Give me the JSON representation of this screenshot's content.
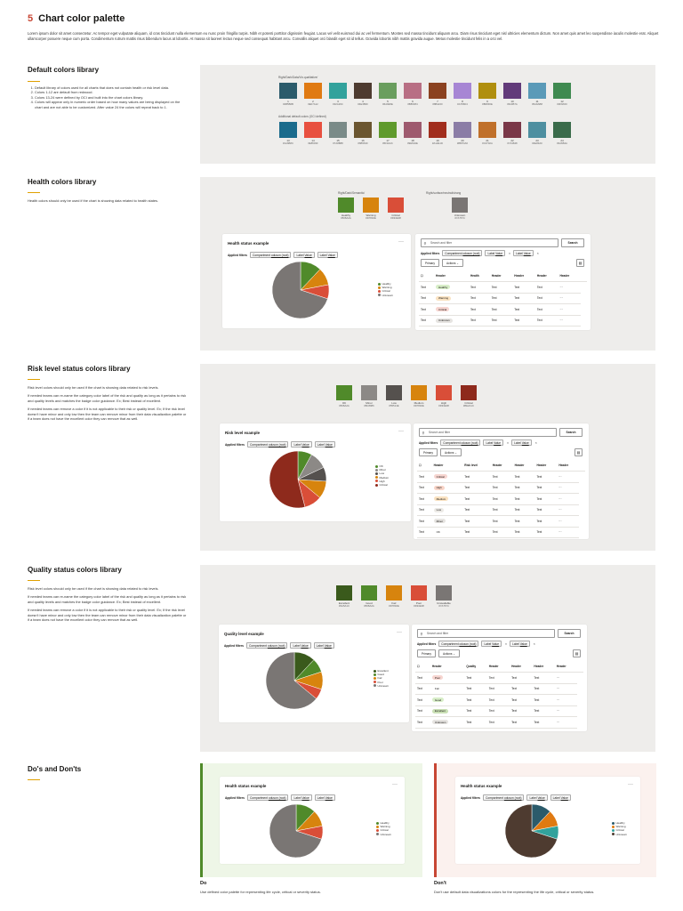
{
  "page": {
    "number": "5",
    "title": "Chart color palette",
    "intro": "Lorem ipsum dolor sit amet consectetur. Ac tempor eget vulputate aliquam, id cras tincidunt nulla elementum eu nunc proin fringilla turpis. Nibh et potenti porttitor dignissim feugiat. Lacus vel velit euismod dui ac vel fermentum. Montes sed massa tincidunt aliquam arcu. Diam risus tincidunt eget nisl ultricies elementum dictum. Non amet quis amet leo suspendisse iaculis molestie erat. Aliquet ullamcorper posuere neque cum porta. Condimentum rutrum mattis risus bibendum lacus at lobortis. At massa sit laoreet lectus neque sed consequat habitant arcu. Convallis aliquet orci blandit eget sit id tellus. Gravida lobortis nibh mattis gravida augue. Metus molestie tincidunt felis in a orci vel."
  },
  "default_section": {
    "title": "Default colors library",
    "items": [
      "Default library of colors used for all charts that does not contain health or risk level data.",
      "Colors 1-12 are default from redwood.",
      "Colors 13-24 were defined by OCI and built into the chart colors library.",
      "Colors will appear only in numeric order based on how many values are being displayed on the chart and are not able to be customized. After value 24 the colors will repeat back to 1."
    ],
    "cap1": "Right/Dark/Data/Viz-qualitative/",
    "cap2": "Additional default colors (OCI defined)",
    "row1": [
      {
        "n": "1",
        "hex": "#2B5B6B",
        "c": "#2b5b6b"
      },
      {
        "n": "2",
        "hex": "#E07A12",
        "c": "#e07a12"
      },
      {
        "n": "3",
        "hex": "#32A29C",
        "c": "#32a29c"
      },
      {
        "n": "4",
        "hex": "#4E3B30",
        "c": "#4e3b30"
      },
      {
        "n": "5",
        "hex": "#6A9E5E",
        "c": "#6a9e5e"
      },
      {
        "n": "6",
        "hex": "#B86F84",
        "c": "#b86f84"
      },
      {
        "n": "7",
        "hex": "#8B4220",
        "c": "#8b4220"
      },
      {
        "n": "8",
        "hex": "#A786D4",
        "c": "#a786d4"
      },
      {
        "n": "9",
        "hex": "#B08F0E",
        "c": "#b08f0e"
      },
      {
        "n": "10",
        "hex": "#623B7A",
        "c": "#623b7a"
      },
      {
        "n": "11",
        "hex": "#5A9AB8",
        "c": "#5a9ab8"
      },
      {
        "n": "12",
        "hex": "#3F8A50",
        "c": "#3f8a50"
      }
    ],
    "row2": [
      {
        "n": "13",
        "hex": "#1A6B8C",
        "c": "#1a6b8c"
      },
      {
        "n": "14",
        "hex": "#E8503F",
        "c": "#e8503f"
      },
      {
        "n": "15",
        "hex": "#7A8B88",
        "c": "#7a8b88"
      },
      {
        "n": "16",
        "hex": "#6B5630",
        "c": "#6b5630"
      },
      {
        "n": "17",
        "hex": "#5F9A2C",
        "c": "#5f9a2c"
      },
      {
        "n": "18",
        "hex": "#9E5A6E",
        "c": "#9e5a6e"
      },
      {
        "n": "19",
        "hex": "#A12E1D",
        "c": "#a12e1d"
      },
      {
        "n": "20",
        "hex": "#8B7DA6",
        "c": "#8b7da6"
      },
      {
        "n": "21",
        "hex": "#C0702A",
        "c": "#c0702a"
      },
      {
        "n": "22",
        "hex": "#7A3848",
        "c": "#7a3848"
      },
      {
        "n": "23",
        "hex": "#4E8FA0",
        "c": "#4e8fa0"
      },
      {
        "n": "24",
        "hex": "#3A6B4A",
        "c": "#3a6b4a"
      }
    ]
  },
  "health_section": {
    "title": "Health colors library",
    "text": "Health colors should only be used if the chart is showing data related to health states.",
    "cap1": "Right/Dark/Semantic/",
    "cap2": "Right/surface/neutral/strong",
    "colors": [
      {
        "label": "Healthy",
        "hex": "#508A2A",
        "c": "#508a2a"
      },
      {
        "label": "Warning",
        "hex": "#D7840E",
        "c": "#d7840e"
      },
      {
        "label": "Critical",
        "hex": "#D94E38",
        "c": "#d94e38"
      },
      {
        "label": "Unknown",
        "hex": "#7A7674",
        "c": "#7a7674"
      }
    ]
  },
  "risk_section": {
    "title": "Risk level status colors library",
    "paras": [
      "Risk level colors should only be used if the chart is showing data related to risk levels.",
      "If needed teams can re-name the category color label of the risk and quality as long as it pertains to risk and quality levels and matches the badge color guidance. Ex; Best instead of excellent.",
      "If needed teams can remove a color if it is not applicable to their risk or quality level. Ex; If the risk level doesn't have minor and only low then the team can remove minor from their data visualization palette or if a team does not have the excellent color they can remove that as well."
    ],
    "colors": [
      {
        "label": "OK",
        "hex": "#508A2A",
        "c": "#508a2a"
      },
      {
        "label": "Minor",
        "hex": "#8C8986",
        "c": "#8c8986"
      },
      {
        "label": "Low",
        "hex": "#55514E",
        "c": "#55514e"
      },
      {
        "label": "Medium",
        "hex": "#D7840E",
        "c": "#d7840e"
      },
      {
        "label": "High",
        "hex": "#D94E38",
        "c": "#d94e38"
      },
      {
        "label": "Critical",
        "hex": "#8E2A1C",
        "c": "#8e2a1c"
      }
    ]
  },
  "quality_section": {
    "title": "Quality status colors library",
    "paras": [
      "Risk level colors should only be used if the chart is showing data related to risk levels.",
      "If needed teams can re-name the category color label of the risk and quality as long as it pertains to risk and quality levels and matches the badge color guidance. Ex; Best instead of excellent.",
      "If needed teams can remove a color if it is not applicable to their risk or quality level. Ex; If the risk level doesn't have minor and only low then the team can remove minor from their data visualization palette or if a team does not have the excellent color they can remove that as well."
    ],
    "colors": [
      {
        "label": "Excellent",
        "hex": "#3A5A1C",
        "c": "#3a5a1c"
      },
      {
        "label": "Good",
        "hex": "#508A2A",
        "c": "#508a2a"
      },
      {
        "label": "Fair",
        "hex": "#D7840E",
        "c": "#d7840e"
      },
      {
        "label": "Poor",
        "hex": "#D94E38",
        "c": "#d94e38"
      },
      {
        "label": "Unavailable",
        "hex": "#7A7674",
        "c": "#7a7674"
      }
    ]
  },
  "common": {
    "applied": "Applied filters",
    "comp": "Compartment",
    "compv": "oduson (root)",
    "lab": "Label",
    "labv": "Value",
    "search": "Search and filter",
    "search_btn": "Search",
    "primary": "Primary",
    "actions": "Actions",
    "header": "Header",
    "text": "Text",
    "more": "···"
  },
  "health_card": {
    "title": "Health status example",
    "col2": "Health",
    "legend": [
      "Healthy",
      "Warning",
      "Critical",
      "Unknown"
    ],
    "badges": [
      "Healthy",
      "Warning",
      "Critical",
      "Unknown"
    ]
  },
  "risk_card": {
    "title": "Risk level example",
    "col2": "Risk level",
    "legend": [
      "OK",
      "Minor",
      "Low",
      "Medium",
      "High",
      "Critical"
    ],
    "badges": [
      "Critical",
      "High",
      "Medium",
      "Low",
      "Minor",
      "OK"
    ]
  },
  "quality_card": {
    "title": "Quality level example",
    "col2": "Quality",
    "legend": [
      "Excellent",
      "Good",
      "Fair",
      "Poor",
      "Unknown"
    ],
    "badges": [
      "Poor",
      "Fair",
      "Good",
      "Excellent",
      "Unknown"
    ]
  },
  "dos": {
    "title": "Do's and Don'ts",
    "do_title": "Do",
    "do_text": "Use defined color palette for representing life cycle, critical or severity status.",
    "dont_title": "Don't",
    "dont_text": "Don't use default data visualizations colors for the representing the life cycle, critical or severity status.",
    "card_title": "Health status example",
    "legend": [
      "Healthy",
      "Warning",
      "Critical",
      "Unknown"
    ]
  },
  "chart_data": [
    {
      "type": "pie",
      "title": "Health status example",
      "categories": [
        "Healthy",
        "Warning",
        "Critical",
        "Unknown"
      ],
      "values": [
        12,
        10,
        8,
        70
      ],
      "colors": [
        "#508a2a",
        "#d7840e",
        "#d94e38",
        "#7a7674"
      ]
    },
    {
      "type": "pie",
      "title": "Risk level example",
      "categories": [
        "OK",
        "Minor",
        "Low",
        "Medium",
        "High",
        "Critical"
      ],
      "values": [
        8,
        10,
        8,
        10,
        10,
        54
      ],
      "colors": [
        "#508a2a",
        "#8c8986",
        "#55514e",
        "#d7840e",
        "#d94e38",
        "#8e2a1c"
      ]
    },
    {
      "type": "pie",
      "title": "Quality level example",
      "categories": [
        "Excellent",
        "Good",
        "Fair",
        "Poor",
        "Unknown"
      ],
      "values": [
        12,
        8,
        10,
        6,
        64
      ],
      "colors": [
        "#3a5a1c",
        "#508a2a",
        "#d7840e",
        "#d94e38",
        "#7a7674"
      ]
    },
    {
      "type": "pie",
      "title": "Health status example",
      "categories": [
        "Healthy",
        "Warning",
        "Critical",
        "Unknown"
      ],
      "values": [
        12,
        10,
        8,
        70
      ],
      "colors": [
        "#508a2a",
        "#d7840e",
        "#d94e38",
        "#7a7674"
      ]
    },
    {
      "type": "pie",
      "title": "Health status example",
      "categories": [
        "Healthy",
        "Warning",
        "Critical",
        "Unknown"
      ],
      "values": [
        12,
        10,
        8,
        70
      ],
      "colors": [
        "#2b5b6b",
        "#e07a12",
        "#32a29c",
        "#4e3b30"
      ]
    }
  ]
}
